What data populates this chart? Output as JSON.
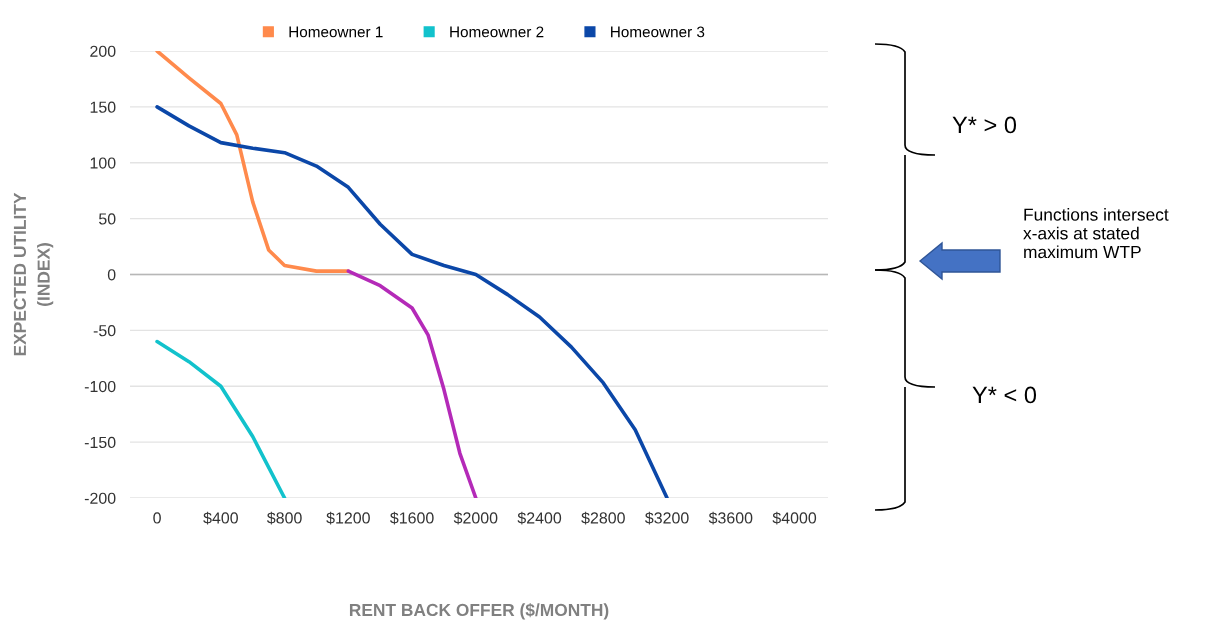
{
  "chart_data": {
    "type": "line",
    "xlabel": "RENT BACK OFFER ($/MONTH)",
    "ylabel": "EXPECTED UTILITY\n(INDEX)",
    "xlim": [
      -170,
      4210
    ],
    "ylim": [
      -200,
      200
    ],
    "xticks": [
      0,
      {
        "value": 400,
        "label": "$400"
      },
      {
        "value": 800,
        "label": "$800"
      },
      {
        "value": 1200,
        "label": "$1200"
      },
      {
        "value": 1600,
        "label": "$1600"
      },
      {
        "value": 2000,
        "label": "$2000"
      },
      {
        "value": 2400,
        "label": "$2400"
      },
      {
        "value": 2800,
        "label": "$2800"
      },
      {
        "value": 3200,
        "label": "$3200"
      },
      {
        "value": 3600,
        "label": "$3600"
      },
      {
        "value": 4000,
        "label": "$4000"
      }
    ],
    "yticks": [
      200,
      150,
      100,
      50,
      0,
      -50,
      -100,
      -150,
      -200
    ],
    "grid": "y",
    "legend": "top",
    "marker": "none",
    "line_style": "solid",
    "ref_lines": [
      {
        "axis": "y",
        "value": 0,
        "color": "#b7b7b7"
      }
    ],
    "series": [
      {
        "name": "Homeowner 1",
        "color": "#ff8a4c",
        "x": [
          0,
          200,
          400,
          500,
          600,
          700,
          800,
          1000,
          1200
        ],
        "values": [
          200,
          176,
          153,
          125,
          65,
          22,
          8,
          3,
          3
        ]
      },
      {
        "name": "Homeowner 2",
        "color": "#12c2cc",
        "x": [
          0,
          200,
          400,
          600,
          800
        ],
        "values": [
          -60,
          -78,
          -100,
          -145,
          -200
        ]
      },
      {
        "name": "Homeowner 3",
        "color": "#0b47a8",
        "x": [
          0,
          200,
          400,
          600,
          800,
          1000,
          1200,
          1400,
          1600,
          1800,
          2000,
          2200,
          2400,
          2600,
          2800,
          3000,
          3200
        ],
        "values": [
          150,
          133,
          118,
          113,
          109,
          97,
          78,
          45,
          18,
          8,
          0,
          -18,
          -38,
          -65,
          -97,
          -139,
          -200
        ]
      },
      {
        "color": "#b42ab8",
        "x": [
          1200,
          1400,
          1600,
          1700,
          1800,
          1900,
          2000
        ],
        "values": [
          3,
          -10,
          -30,
          -54,
          -103,
          -160,
          -200
        ]
      }
    ],
    "annotations": [
      "Y* > 0",
      "Functions intersect x-axis at stated maximum WTP",
      "Y* < 0"
    ]
  }
}
